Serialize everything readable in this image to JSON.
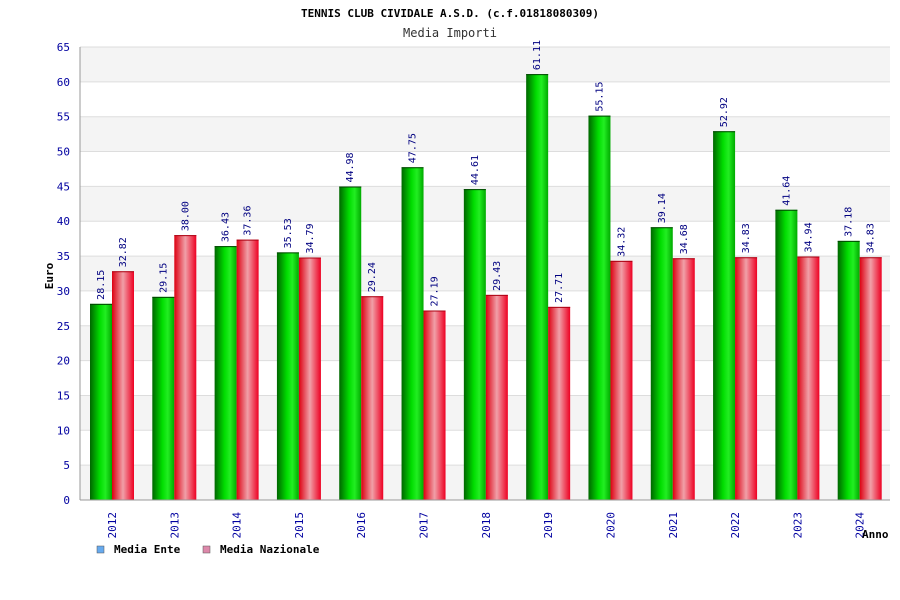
{
  "chart_data": {
    "type": "bar",
    "title": "TENNIS CLUB CIVIDALE A.S.D. (c.f.01818080309)",
    "subtitle": "Media Importi",
    "xlabel": "Anno",
    "ylabel": "Euro",
    "ylim": [
      0,
      65
    ],
    "ytick_step": 5,
    "categories": [
      "2012",
      "2013",
      "2014",
      "2015",
      "2016",
      "2017",
      "2018",
      "2019",
      "2020",
      "2021",
      "2022",
      "2023",
      "2024"
    ],
    "series": [
      {
        "name": "Media Ente",
        "color": "#00cc00",
        "legend_color": "#66aaee",
        "values": [
          28.15,
          29.15,
          36.43,
          35.53,
          44.98,
          47.75,
          44.61,
          61.11,
          55.15,
          39.14,
          52.92,
          41.64,
          37.18
        ],
        "labels": [
          "28.15",
          "29.15",
          "36.43",
          "35.53",
          "44.98",
          "47.75",
          "44.61",
          "61.11",
          "55.15",
          "39.14",
          "52.92",
          "41.64",
          "37.18"
        ]
      },
      {
        "name": "Media Nazionale",
        "color": "#ee0022",
        "legend_color": "#dd88aa",
        "values": [
          32.82,
          38.0,
          37.36,
          34.79,
          29.24,
          27.19,
          29.43,
          27.71,
          34.32,
          34.68,
          34.83,
          34.94,
          34.83
        ],
        "labels": [
          "32.82",
          "38.00",
          "37.36",
          "34.79",
          "29.24",
          "27.19",
          "29.43",
          "27.71",
          "34.32",
          "34.68",
          "34.83",
          "34.94",
          "34.83"
        ]
      }
    ],
    "grid": true,
    "legend_position": "bottom-left"
  }
}
